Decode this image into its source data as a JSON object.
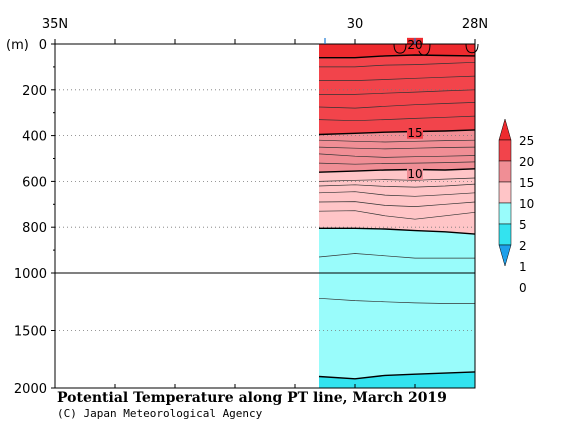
{
  "chart_data": {
    "type": "heatmap",
    "title": "Potential Temperature along PT line, March 2019",
    "credit": "(C) Japan Meteorological Agency",
    "x_axis": {
      "direction": "latitude",
      "range": [
        35,
        28
      ],
      "tick_values": [
        35,
        34,
        33,
        32,
        31,
        30,
        29,
        28
      ],
      "tick_labels": [
        {
          "value": 35,
          "label": "35N"
        },
        {
          "value": 30,
          "label": "30"
        },
        {
          "value": 28,
          "label": "28N"
        }
      ],
      "station_marks": [
        30.5,
        29.0
      ]
    },
    "y_axis": {
      "unit_label": "(m)",
      "upper_segment": {
        "range": [
          0,
          1000
        ],
        "ticks": [
          0,
          200,
          400,
          600,
          800,
          1000
        ]
      },
      "lower_segment": {
        "range": [
          1000,
          2000
        ],
        "ticks": [
          1500,
          2000
        ]
      },
      "grid": "dotted"
    },
    "data_extent": {
      "lat": [
        30.6,
        28.0
      ],
      "depth": [
        0,
        2000
      ]
    },
    "levels": [
      0,
      1,
      2,
      5,
      10,
      15,
      20,
      25
    ],
    "colors": [
      "#1ea0ea",
      "#33e3ef",
      "#99fcfb",
      "#ffc5c7",
      "#f08e95",
      "#f2444b",
      "#ee2a2e"
    ],
    "band_boundaries": [
      {
        "level": 20,
        "surface_depth": 0,
        "depth": [
          60,
          60,
          52,
          48,
          50,
          52
        ]
      },
      {
        "level": 15,
        "depth": [
          395,
          390,
          385,
          382,
          380,
          375
        ],
        "label_pos": [
          29.0,
          392
        ]
      },
      {
        "level": 10,
        "depth": [
          560,
          555,
          550,
          548,
          550,
          545
        ],
        "label_pos": [
          29.0,
          572
        ]
      },
      {
        "level": 5,
        "depth": [
          805,
          805,
          808,
          815,
          820,
          830
        ]
      },
      {
        "level": 2,
        "depth": [
          1900,
          1920,
          1890,
          1880,
          1870,
          1860
        ]
      }
    ],
    "contour_lats": [
      30.6,
      30.0,
      29.5,
      29.0,
      28.5,
      28.0
    ],
    "minor_contours": [
      [
        100,
        100,
        92,
        90,
        85,
        80
      ],
      [
        160,
        160,
        155,
        150,
        145,
        140
      ],
      [
        220,
        220,
        215,
        210,
        205,
        200
      ],
      [
        275,
        280,
        272,
        265,
        260,
        255
      ],
      [
        330,
        335,
        330,
        325,
        320,
        315
      ],
      [
        420,
        425,
        428,
        425,
        422,
        420
      ],
      [
        450,
        455,
        458,
        455,
        452,
        450
      ],
      [
        480,
        490,
        495,
        492,
        490,
        487
      ],
      [
        520,
        525,
        522,
        520,
        518,
        515
      ],
      [
        600,
        595,
        592,
        595,
        590,
        585
      ],
      [
        620,
        615,
        622,
        625,
        620,
        612
      ],
      [
        650,
        645,
        660,
        665,
        658,
        650
      ],
      [
        690,
        688,
        705,
        710,
        700,
        690
      ],
      [
        730,
        728,
        750,
        765,
        750,
        735
      ],
      [
        930,
        915,
        925,
        935,
        935,
        935
      ],
      [
        1220,
        1240,
        1250,
        1260,
        1265,
        1265
      ]
    ],
    "surface_inversions": [
      {
        "lat": 29.25,
        "depth": 40
      },
      {
        "lat": 28.85,
        "depth": 48
      },
      {
        "lat": 28.05,
        "depth": 38
      }
    ],
    "colorbar_labels": [
      "25",
      "20",
      "15",
      "10",
      "5",
      "2",
      "1",
      "0"
    ]
  }
}
